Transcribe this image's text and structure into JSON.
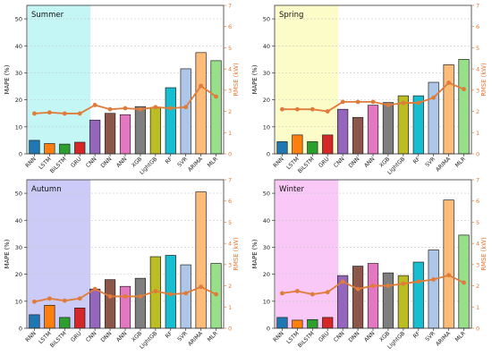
{
  "chart_data": [
    {
      "type": "bar",
      "title": "Summer",
      "ylabel": "MAPE (%)",
      "y2label": "RMSE (kW)",
      "ylim": [
        0,
        55
      ],
      "y2lim": [
        0,
        7
      ],
      "yticks": [
        "0",
        "10",
        "20",
        "30",
        "40",
        "50"
      ],
      "y2ticks": [
        "0",
        "1",
        "2",
        "3",
        "4",
        "5",
        "6",
        "7"
      ],
      "highlight_color": "#c4f6f6",
      "highlight_categories": [
        "RNN",
        "LSTM",
        "BiLSTM",
        "GRU"
      ],
      "categories": [
        "RNN",
        "LSTM",
        "BiLSTM",
        "GRU",
        "CNN",
        "DNN",
        "ANN",
        "XGB",
        "LightGB",
        "RF",
        "SVR",
        "ARIMA",
        "MLR"
      ],
      "series": [
        {
          "name": "MAPE",
          "kind": "bar",
          "axis": "left",
          "values": [
            5.0,
            3.8,
            3.6,
            4.3,
            12.5,
            15.0,
            14.5,
            17.5,
            17.0,
            24.5,
            31.5,
            37.5,
            34.5
          ]
        },
        {
          "name": "RMSE",
          "kind": "line",
          "axis": "right",
          "color": "#e07b39",
          "values": [
            1.9,
            1.95,
            1.9,
            1.9,
            2.3,
            2.1,
            2.15,
            2.1,
            2.2,
            2.15,
            2.2,
            3.2,
            2.7
          ]
        }
      ]
    },
    {
      "type": "bar",
      "title": "Spring",
      "ylabel": "MAPE (%)",
      "y2label": "RMSE (kW)",
      "ylim": [
        0,
        55
      ],
      "y2lim": [
        0,
        7
      ],
      "yticks": [
        "0",
        "10",
        "20",
        "30",
        "40",
        "50"
      ],
      "y2ticks": [
        "0",
        "1",
        "2",
        "3",
        "4",
        "5",
        "6",
        "7"
      ],
      "highlight_color": "#fcfcc8",
      "highlight_categories": [
        "RNN",
        "LSTM",
        "BiLSTM",
        "GRU"
      ],
      "categories": [
        "RNN",
        "LSTM",
        "BiLSTM",
        "GRU",
        "CNN",
        "DNN",
        "ANN",
        "XGB",
        "LightGB",
        "RF",
        "SVR",
        "ARIMA",
        "MLR"
      ],
      "series": [
        {
          "name": "MAPE",
          "kind": "bar",
          "axis": "left",
          "values": [
            4.5,
            7.0,
            4.5,
            7.0,
            16.5,
            13.5,
            18.0,
            19.0,
            21.5,
            21.5,
            26.5,
            33.0,
            35.0
          ]
        },
        {
          "name": "RMSE",
          "kind": "line",
          "axis": "right",
          "color": "#e07b39",
          "values": [
            2.1,
            2.1,
            2.1,
            2.0,
            2.45,
            2.45,
            2.45,
            2.3,
            2.4,
            2.4,
            2.65,
            3.35,
            3.05
          ]
        }
      ]
    },
    {
      "type": "bar",
      "title": "Autumn",
      "ylabel": "MAPE (%)",
      "y2label": "RMSE (kW)",
      "ylim": [
        0,
        55
      ],
      "y2lim": [
        0,
        7
      ],
      "yticks": [
        "0",
        "10",
        "20",
        "30",
        "40",
        "50"
      ],
      "y2ticks": [
        "0",
        "1",
        "2",
        "3",
        "4",
        "5",
        "6",
        "7"
      ],
      "highlight_color": "#cccaf6",
      "highlight_categories": [
        "RNN",
        "LSTM",
        "BiLSTM",
        "GRU"
      ],
      "categories": [
        "RNN",
        "LSTM",
        "BiLSTM",
        "GRU",
        "CNN",
        "DNN",
        "ANN",
        "XGB",
        "LightGB",
        "RF",
        "SVR",
        "ARIMA",
        "MLR"
      ],
      "series": [
        {
          "name": "MAPE",
          "kind": "bar",
          "axis": "left",
          "values": [
            5.0,
            8.5,
            4.0,
            7.5,
            14.5,
            18.0,
            15.5,
            18.5,
            26.5,
            27.0,
            23.5,
            50.5,
            24.0
          ]
        },
        {
          "name": "RMSE",
          "kind": "line",
          "axis": "right",
          "color": "#e07b39",
          "values": [
            1.25,
            1.4,
            1.3,
            1.4,
            1.85,
            1.5,
            1.5,
            1.5,
            1.75,
            1.6,
            1.65,
            1.95,
            1.6
          ]
        }
      ]
    },
    {
      "type": "bar",
      "title": "Winter",
      "ylabel": "MAPE (%)",
      "y2label": "RMSE (kW)",
      "ylim": [
        0,
        55
      ],
      "y2lim": [
        0,
        7
      ],
      "yticks": [
        "0",
        "10",
        "20",
        "30",
        "40",
        "50"
      ],
      "y2ticks": [
        "0",
        "1",
        "2",
        "3",
        "4",
        "5",
        "6",
        "7"
      ],
      "highlight_color": "#f9c8f6",
      "highlight_categories": [
        "RNN",
        "LSTM",
        "BiLSTM",
        "GRU"
      ],
      "categories": [
        "RNN",
        "LSTM",
        "BiLSTM",
        "GRU",
        "CNN",
        "DNN",
        "ANN",
        "XGB",
        "LightGB",
        "RF",
        "SVR",
        "ARIMA",
        "MLR"
      ],
      "series": [
        {
          "name": "MAPE",
          "kind": "bar",
          "axis": "left",
          "values": [
            4.0,
            3.0,
            3.2,
            4.0,
            19.5,
            23.0,
            24.0,
            20.5,
            19.5,
            24.5,
            29.0,
            47.5,
            34.5
          ]
        },
        {
          "name": "RMSE",
          "kind": "line",
          "axis": "right",
          "color": "#e07b39",
          "values": [
            1.65,
            1.75,
            1.6,
            1.7,
            2.2,
            1.85,
            2.0,
            2.0,
            2.1,
            2.2,
            2.3,
            2.5,
            2.15
          ]
        }
      ]
    }
  ],
  "bar_colors": [
    "#1f77b4",
    "#ff7f0e",
    "#2ca02c",
    "#d62728",
    "#9467bd",
    "#8c564b",
    "#e377c2",
    "#7f7f7f",
    "#bcbd22",
    "#17becf",
    "#aec7e8",
    "#ffbb78",
    "#98df8a"
  ],
  "axis_right_color": "#e07b39"
}
